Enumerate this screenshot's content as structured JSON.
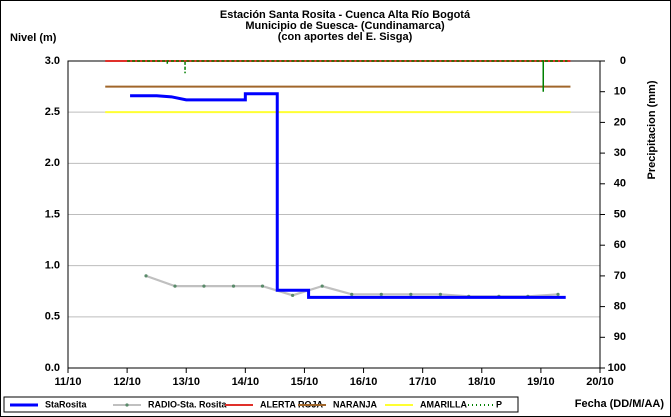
{
  "chart_data": {
    "type": "line",
    "title": [
      "Estación Santa Rosita - Cuenca Alta Río Bogotá",
      "Municipio de Suesca- (Cundinamarca)",
      "(con aportes del  E. Sisga)"
    ],
    "y_label": "Nivel (m)",
    "y2_label": "Precipitacion (mm)",
    "x_label": "Fecha (DD/M/AA)",
    "xlim": [
      11,
      20
    ],
    "xticks": [
      {
        "value": 11,
        "label": "11/10"
      },
      {
        "value": 12,
        "label": "12/10"
      },
      {
        "value": 13,
        "label": "13/10"
      },
      {
        "value": 14,
        "label": "14/10"
      },
      {
        "value": 15,
        "label": "15/10"
      },
      {
        "value": 16,
        "label": "16/10"
      },
      {
        "value": 17,
        "label": "17/10"
      },
      {
        "value": 18,
        "label": "18/10"
      },
      {
        "value": 19,
        "label": "19/10"
      },
      {
        "value": 20,
        "label": "20/10"
      }
    ],
    "ylim": [
      0,
      3
    ],
    "yticks": [
      {
        "value": 0,
        "label": "0.0"
      },
      0.5,
      {
        "value": 1,
        "label": "1.0"
      },
      1.5,
      {
        "value": 2,
        "label": "2.0"
      },
      2.5,
      {
        "value": 3,
        "label": "3.0"
      }
    ],
    "y2lim": [
      100,
      0
    ],
    "y2ticks": [
      0,
      10,
      20,
      30,
      40,
      50,
      60,
      70,
      80,
      90,
      100
    ],
    "grid": true,
    "legend": "bottom",
    "series": [
      {
        "name": "StaRosita",
        "color": "#0000ff",
        "x": [
          12.05,
          12.5,
          12.75,
          13.0,
          14.0,
          14.0,
          14.54,
          14.54,
          15.07,
          15.07,
          19.42
        ],
        "values": [
          2.66,
          2.66,
          2.65,
          2.62,
          2.62,
          2.68,
          2.68,
          0.76,
          0.76,
          0.69,
          0.69
        ]
      },
      {
        "name": "RADIO-Sta. Rosita",
        "color": "#c0c0c0",
        "marker": true,
        "x": [
          12.32,
          12.81,
          13.3,
          13.8,
          14.29,
          14.8,
          15.3,
          15.8,
          16.3,
          16.8,
          17.3,
          17.78,
          18.29,
          18.78,
          19.29
        ],
        "values": [
          0.9,
          0.8,
          0.8,
          0.8,
          0.8,
          0.71,
          0.8,
          0.72,
          0.72,
          0.72,
          0.72,
          0.7,
          0.7,
          0.7,
          0.72
        ]
      },
      {
        "name": "ALERTA ROJA",
        "color": "#e0302a",
        "x": [
          11.63,
          19.5
        ],
        "values": [
          3,
          3
        ]
      },
      {
        "name": "NARANJA",
        "color": "#a0662a",
        "x": [
          11.63,
          19.5
        ],
        "values": [
          2.75,
          2.75
        ]
      },
      {
        "name": "AMARILLA",
        "color": "#ffff33",
        "x": [
          11.63,
          19.5
        ],
        "values": [
          2.5,
          2.5
        ]
      },
      {
        "name": "P",
        "color": "#008000",
        "axis": "y2",
        "dashed": true,
        "x": [
          12.0,
          12.68,
          12.68,
          12.68,
          12.98,
          12.98,
          12.98,
          19.04,
          19.04,
          19.04,
          19.45
        ],
        "values": [
          0,
          0,
          1,
          0,
          0,
          4,
          0,
          0,
          10,
          0,
          0
        ]
      }
    ]
  }
}
